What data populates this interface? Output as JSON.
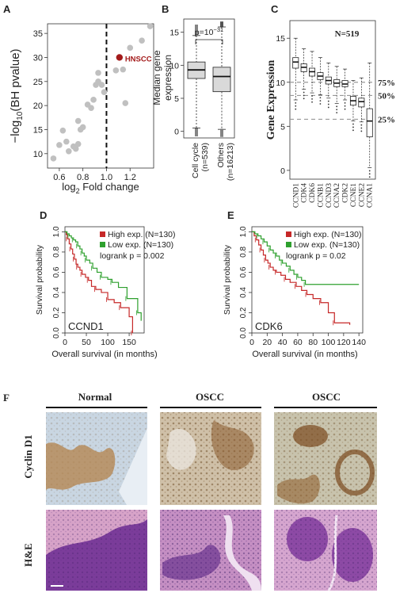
{
  "panel_labels": {
    "A": "A",
    "B": "B",
    "C": "C",
    "D": "D",
    "E": "E",
    "F": "F"
  },
  "colors": {
    "grey_point": "#c0c0c0",
    "highlight": "#a31a1a",
    "high_exp": "#c62828",
    "low_exp": "#2ea02e",
    "box_fill": "#d9d9d9"
  },
  "chart_data": [
    {
      "id": "A",
      "type": "scatter",
      "xlabel_main": "log",
      "xlabel_sub": "2",
      "xlabel_rest": " Fold change",
      "ylabel_main": "−log",
      "ylabel_sub": "10",
      "ylabel_rest": "(BH pvalue)",
      "xlim": [
        0.5,
        1.4
      ],
      "ylim": [
        7,
        37
      ],
      "xticks": [
        0.6,
        0.8,
        1.0,
        1.2
      ],
      "xtick_labels": [
        "0.6",
        "0.8",
        "1.0",
        "1.2"
      ],
      "yticks": [
        10,
        15,
        20,
        25,
        30,
        35
      ],
      "ytick_labels": [
        "10",
        "15",
        "20",
        "25",
        "30",
        "35"
      ],
      "vline_x": 1.0,
      "points": [
        [
          0.55,
          9.0
        ],
        [
          0.6,
          11.8
        ],
        [
          0.63,
          14.8
        ],
        [
          0.66,
          12.5
        ],
        [
          0.68,
          10.5
        ],
        [
          0.72,
          11.5
        ],
        [
          0.74,
          11.0
        ],
        [
          0.76,
          12.0
        ],
        [
          0.76,
          16.8
        ],
        [
          0.78,
          15.0
        ],
        [
          0.8,
          15.5
        ],
        [
          0.84,
          20.2
        ],
        [
          0.87,
          19.5
        ],
        [
          0.89,
          21.2
        ],
        [
          0.91,
          24.3
        ],
        [
          0.93,
          25.0
        ],
        [
          0.93,
          26.8
        ],
        [
          0.96,
          24.3
        ],
        [
          0.98,
          22.8
        ],
        [
          1.08,
          27.3
        ],
        [
          1.14,
          27.5
        ],
        [
          1.16,
          20.5
        ],
        [
          1.2,
          32.0
        ],
        [
          1.3,
          33.5
        ],
        [
          1.37,
          36.5
        ]
      ],
      "highlight_point": [
        1.11,
        30.0
      ],
      "highlight_label": "HNSCC"
    },
    {
      "id": "B",
      "type": "box",
      "ylabel": "Median gene\nexpression",
      "ylim": [
        -1,
        17
      ],
      "yticks": [
        0,
        5,
        10,
        15
      ],
      "ytick_labels": [
        "0",
        "5",
        "10",
        "15"
      ],
      "pvalue_main": "p=10",
      "pvalue_exp": "−31",
      "groups": [
        {
          "label": "Cell cycle",
          "n": "(n=539)",
          "min": 0.5,
          "q1": 8.0,
          "median": 9.3,
          "q3": 10.5,
          "max": 14.5
        },
        {
          "label": "Others",
          "n": "(n=16213)",
          "min": 0.3,
          "q1": 6.0,
          "median": 8.3,
          "q3": 9.7,
          "max": 15.8
        }
      ]
    },
    {
      "id": "C",
      "type": "box",
      "ylabel": "Gene Expression",
      "n_label": "N=519",
      "ylim": [
        -1,
        17
      ],
      "yticks": [
        0,
        5,
        10,
        15
      ],
      "ytick_labels": [
        "0",
        "5",
        "10",
        "15"
      ],
      "ref_lines": [
        {
          "y": 10.0,
          "label": "75%"
        },
        {
          "y": 8.5,
          "label": "50%"
        },
        {
          "y": 5.8,
          "label": "25%"
        }
      ],
      "genes": [
        {
          "label": "CCND1",
          "min": 8.0,
          "q1": 11.6,
          "median": 12.3,
          "q3": 12.8,
          "max": 15.0
        },
        {
          "label": "CDK4",
          "min": 9.2,
          "q1": 11.2,
          "median": 11.7,
          "q3": 12.1,
          "max": 13.8
        },
        {
          "label": "CDK6",
          "min": 8.8,
          "q1": 10.7,
          "median": 11.2,
          "q3": 11.6,
          "max": 13.5
        },
        {
          "label": "CCNB1",
          "min": 8.6,
          "q1": 10.3,
          "median": 10.7,
          "q3": 11.1,
          "max": 12.8
        },
        {
          "label": "CCND3",
          "min": 8.2,
          "q1": 9.8,
          "median": 10.2,
          "q3": 10.6,
          "max": 12.2
        },
        {
          "label": "CCNA2",
          "min": 7.6,
          "q1": 9.5,
          "median": 9.9,
          "q3": 10.3,
          "max": 11.8
        },
        {
          "label": "CDK2",
          "min": 8.0,
          "q1": 9.5,
          "median": 9.8,
          "q3": 10.2,
          "max": 11.5
        },
        {
          "label": "CCNE1",
          "min": 5.6,
          "q1": 7.4,
          "median": 7.9,
          "q3": 8.4,
          "max": 10.2
        },
        {
          "label": "CCNE2",
          "min": 5.5,
          "q1": 7.2,
          "median": 7.8,
          "q3": 8.2,
          "max": 10.5
        },
        {
          "label": "CCNA1",
          "min": 0.3,
          "q1": 3.8,
          "median": 5.6,
          "q3": 7.0,
          "max": 12.2
        }
      ]
    },
    {
      "id": "D",
      "type": "line",
      "title": "CCND1",
      "xlabel": "Overall survival (in months)",
      "ylabel": "Survival probability",
      "xlim": [
        0,
        185
      ],
      "ylim": [
        0,
        1.05
      ],
      "xticks": [
        0,
        50,
        100,
        150
      ],
      "xtick_labels": [
        "0",
        "50",
        "100",
        "150"
      ],
      "yticks": [
        0.0,
        0.2,
        0.4,
        0.6,
        0.8,
        1.0
      ],
      "ytick_labels": [
        "0.0",
        "0.2",
        "0.4",
        "0.6",
        "0.8",
        "1.0"
      ],
      "legend": {
        "high": "High exp. (N=130)",
        "low": "Low exp. (N=130)",
        "logrank": "logrank p = 0.002"
      },
      "series": [
        {
          "name": "High exp. (N=130)",
          "color_key": "high_exp",
          "steps": [
            [
              0,
              1.0
            ],
            [
              3,
              0.97
            ],
            [
              6,
              0.93
            ],
            [
              10,
              0.88
            ],
            [
              14,
              0.83
            ],
            [
              18,
              0.78
            ],
            [
              22,
              0.73
            ],
            [
              26,
              0.68
            ],
            [
              30,
              0.65
            ],
            [
              35,
              0.62
            ],
            [
              40,
              0.58
            ],
            [
              48,
              0.55
            ],
            [
              55,
              0.52
            ],
            [
              62,
              0.46
            ],
            [
              72,
              0.43
            ],
            [
              85,
              0.4
            ],
            [
              100,
              0.33
            ],
            [
              115,
              0.3
            ],
            [
              130,
              0.25
            ],
            [
              150,
              0.16
            ],
            [
              158,
              0.0
            ]
          ]
        },
        {
          "name": "Low exp. (N=130)",
          "color_key": "low_exp",
          "steps": [
            [
              0,
              1.0
            ],
            [
              5,
              0.98
            ],
            [
              10,
              0.96
            ],
            [
              15,
              0.94
            ],
            [
              20,
              0.92
            ],
            [
              25,
              0.9
            ],
            [
              30,
              0.86
            ],
            [
              35,
              0.83
            ],
            [
              40,
              0.79
            ],
            [
              45,
              0.76
            ],
            [
              50,
              0.72
            ],
            [
              58,
              0.69
            ],
            [
              65,
              0.64
            ],
            [
              75,
              0.6
            ],
            [
              85,
              0.55
            ],
            [
              100,
              0.53
            ],
            [
              110,
              0.5
            ],
            [
              125,
              0.45
            ],
            [
              145,
              0.34
            ],
            [
              160,
              0.34
            ],
            [
              170,
              0.2
            ],
            [
              178,
              0.12
            ]
          ]
        }
      ]
    },
    {
      "id": "E",
      "type": "line",
      "title": "CDK6",
      "xlabel": "Overall survival (in months)",
      "ylabel": "Survival probability",
      "xlim": [
        0,
        145
      ],
      "ylim": [
        0,
        1.05
      ],
      "xticks": [
        0,
        20,
        40,
        60,
        80,
        100,
        120,
        140
      ],
      "xtick_labels": [
        "0",
        "20",
        "40",
        "60",
        "80",
        "100",
        "120",
        "140"
      ],
      "yticks": [
        0.0,
        0.2,
        0.4,
        0.6,
        0.8,
        1.0
      ],
      "ytick_labels": [
        "0.0",
        "0.2",
        "0.4",
        "0.6",
        "0.8",
        "1.0"
      ],
      "legend": {
        "high": "High exp. (N=130)",
        "low": "Low exp. (N=130)",
        "logrank": "logrank p = 0.02"
      },
      "series": [
        {
          "name": "High exp. (N=130)",
          "color_key": "high_exp",
          "steps": [
            [
              0,
              1.0
            ],
            [
              3,
              0.96
            ],
            [
              6,
              0.92
            ],
            [
              9,
              0.87
            ],
            [
              12,
              0.82
            ],
            [
              15,
              0.77
            ],
            [
              18,
              0.72
            ],
            [
              21,
              0.69
            ],
            [
              24,
              0.65
            ],
            [
              28,
              0.62
            ],
            [
              32,
              0.6
            ],
            [
              38,
              0.57
            ],
            [
              44,
              0.53
            ],
            [
              50,
              0.5
            ],
            [
              58,
              0.46
            ],
            [
              65,
              0.42
            ],
            [
              72,
              0.38
            ],
            [
              80,
              0.34
            ],
            [
              90,
              0.3
            ],
            [
              100,
              0.2
            ],
            [
              108,
              0.1
            ],
            [
              128,
              0.08
            ]
          ]
        },
        {
          "name": "Low exp. (N=130)",
          "color_key": "low_exp",
          "steps": [
            [
              0,
              1.0
            ],
            [
              4,
              0.98
            ],
            [
              8,
              0.96
            ],
            [
              12,
              0.93
            ],
            [
              16,
              0.9
            ],
            [
              20,
              0.86
            ],
            [
              24,
              0.82
            ],
            [
              28,
              0.79
            ],
            [
              32,
              0.76
            ],
            [
              36,
              0.72
            ],
            [
              40,
              0.69
            ],
            [
              45,
              0.66
            ],
            [
              50,
              0.62
            ],
            [
              55,
              0.58
            ],
            [
              60,
              0.55
            ],
            [
              65,
              0.52
            ],
            [
              70,
              0.48
            ],
            [
              140,
              0.48
            ]
          ]
        }
      ]
    }
  ],
  "panel_f": {
    "columns": [
      "Normal",
      "OSCC",
      "OSCC"
    ],
    "rows": [
      "Cyclin D1",
      "H&E"
    ]
  }
}
